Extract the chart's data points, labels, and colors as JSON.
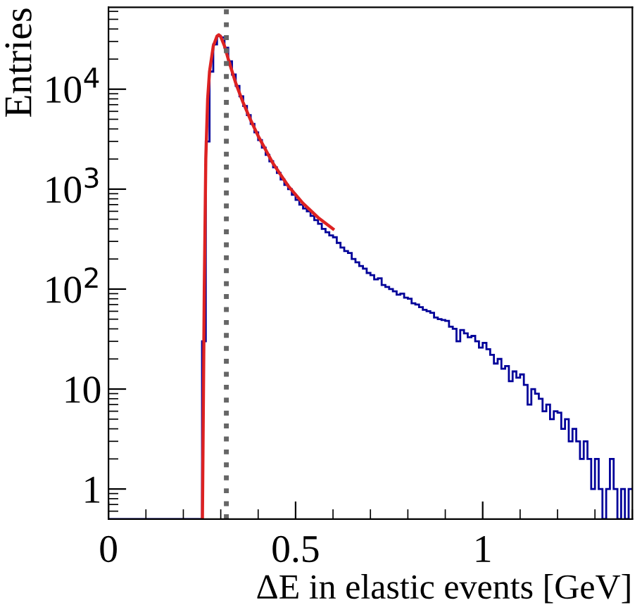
{
  "chart_data": {
    "type": "histogram",
    "xlabel": "ΔE in elastic events [GeV]",
    "ylabel": "Entries",
    "log": "y",
    "grid": false,
    "legend": false,
    "xlim": [
      0,
      1.4
    ],
    "xticks": [
      0,
      0.5,
      1
    ],
    "ylim": [
      0.5,
      66000
    ],
    "yticks": [
      1,
      10,
      {
        "value": 100,
        "label": "10$^{2}$"
      },
      {
        "value": 1000,
        "label": "10$^{3}$"
      },
      {
        "value": 10000,
        "label": "10$^{4}$"
      }
    ],
    "ref_lines": [
      {
        "axis": "x",
        "value": 0.315,
        "color": "#666666",
        "line_style": "dotted"
      }
    ],
    "series": [
      {
        "color": "#000099",
        "bins": [
          0,
          0.01,
          0.02,
          0.03,
          0.04,
          0.05,
          0.06,
          0.07,
          0.08,
          0.09,
          0.1,
          0.11,
          0.12,
          0.13,
          0.14,
          0.15,
          0.16,
          0.17,
          0.18,
          0.19,
          0.2,
          0.21,
          0.22,
          0.23,
          0.24,
          0.25,
          0.26,
          0.27,
          0.28,
          0.29,
          0.3,
          0.31,
          0.32,
          0.33,
          0.34,
          0.35,
          0.36,
          0.37,
          0.38,
          0.39,
          0.4,
          0.41,
          0.42,
          0.43,
          0.44,
          0.45,
          0.46,
          0.47,
          0.48,
          0.49,
          0.5,
          0.51,
          0.52,
          0.53,
          0.54,
          0.55,
          0.56,
          0.57,
          0.58,
          0.59,
          0.6,
          0.61,
          0.62,
          0.63,
          0.64,
          0.65,
          0.66,
          0.67,
          0.68,
          0.69,
          0.7,
          0.71,
          0.72,
          0.73,
          0.74,
          0.75,
          0.76,
          0.77,
          0.78,
          0.79,
          0.8,
          0.81,
          0.82,
          0.83,
          0.84,
          0.85,
          0.86,
          0.87,
          0.88,
          0.89,
          0.9,
          0.91,
          0.92,
          0.93,
          0.94,
          0.95,
          0.96,
          0.97,
          0.98,
          0.99,
          1.0,
          1.01,
          1.02,
          1.03,
          1.04,
          1.05,
          1.06,
          1.07,
          1.08,
          1.09,
          1.1,
          1.11,
          1.12,
          1.13,
          1.14,
          1.15,
          1.16,
          1.17,
          1.18,
          1.19,
          1.2,
          1.21,
          1.22,
          1.23,
          1.24,
          1.25,
          1.26,
          1.27,
          1.28,
          1.29,
          1.3,
          1.31,
          1.32,
          1.33,
          1.34,
          1.35,
          1.36,
          1.37,
          1.38,
          1.39,
          1.4
        ],
        "values": [
          null,
          null,
          null,
          null,
          null,
          null,
          null,
          null,
          null,
          null,
          null,
          null,
          null,
          null,
          null,
          null,
          null,
          null,
          null,
          null,
          null,
          null,
          null,
          null,
          null,
          30,
          3000,
          15000,
          28000,
          34000,
          33000,
          26000,
          19000,
          14000,
          10800,
          8500,
          6800,
          5500,
          4500,
          3700,
          3100,
          2600,
          2200,
          1900,
          1650,
          1450,
          1250,
          1100,
          1000,
          880,
          780,
          700,
          640,
          600,
          540,
          490,
          450,
          400,
          370,
          345,
          330,
          290,
          260,
          240,
          230,
          200,
          185,
          170,
          160,
          145,
          138,
          125,
          128,
          110,
          105,
          100,
          95,
          88,
          90,
          82,
          80,
          72,
          70,
          66,
          62,
          60,
          58,
          52,
          50,
          49,
          48,
          42,
          40,
          30,
          39,
          36,
          33,
          34,
          30,
          26,
          29,
          25,
          22,
          18,
          20,
          16,
          17,
          12,
          15,
          13,
          14,
          11,
          7,
          10,
          9,
          8,
          6,
          7,
          5,
          6,
          5.8,
          4,
          5,
          3,
          4,
          3,
          2,
          3,
          2,
          1,
          2,
          1,
          null,
          1,
          2,
          1,
          null,
          1,
          null,
          1
        ]
      },
      {
        "type": "line",
        "color": "#dd2222",
        "x": [
          0.251,
          0.256,
          0.26,
          0.265,
          0.27,
          0.28,
          0.29,
          0.295,
          0.3,
          0.31,
          0.32,
          0.34,
          0.36,
          0.38,
          0.4,
          0.44,
          0.48,
          0.52,
          0.56,
          0.6
        ],
        "values": [
          0.5,
          100,
          2000,
          8000,
          15000,
          27000,
          34000,
          35000,
          33500,
          27000,
          20000,
          11500,
          7300,
          4900,
          3400,
          1800,
          1080,
          720,
          520,
          400
        ]
      }
    ]
  }
}
